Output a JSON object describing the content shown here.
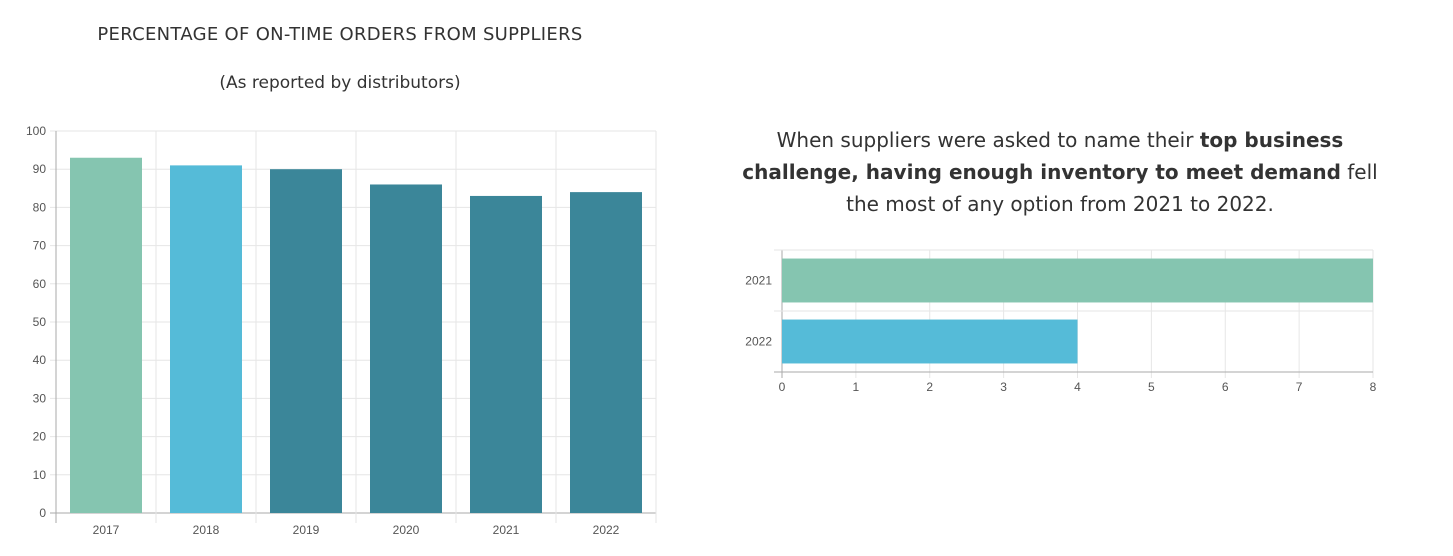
{
  "left_chart": {
    "title": "PERCENTAGE OF ON-TIME ORDERS FROM SUPPLIERS",
    "subtitle": "(As reported by distributors)"
  },
  "note": {
    "before": "When suppliers were asked to name their ",
    "bold": "top business challenge, having enough inventory to meet demand",
    "after": " fell the most of any option from 2021 to 2022."
  },
  "colors": {
    "green": "#85C5B0",
    "light_blue": "#55BBD8",
    "teal": "#3B8699",
    "grid": "#E6E6E6",
    "axis": "#AAAAAA"
  },
  "chart_data": [
    {
      "type": "bar",
      "orientation": "vertical",
      "title": "PERCENTAGE OF ON-TIME ORDERS FROM SUPPLIERS",
      "subtitle": "(As reported by distributors)",
      "categories": [
        "2017",
        "2018",
        "2019",
        "2020",
        "2021",
        "2022"
      ],
      "values": [
        93,
        91,
        90,
        86,
        83,
        84
      ],
      "bar_colors": [
        "#85C5B0",
        "#55BBD8",
        "#3B8699",
        "#3B8699",
        "#3B8699",
        "#3B8699"
      ],
      "ylim": [
        0,
        100
      ],
      "yticks": [
        0,
        10,
        20,
        30,
        40,
        50,
        60,
        70,
        80,
        90,
        100
      ],
      "grid": true,
      "xlabel": "",
      "ylabel": ""
    },
    {
      "type": "bar",
      "orientation": "horizontal",
      "categories": [
        "2021",
        "2022"
      ],
      "values": [
        8,
        4
      ],
      "bar_colors": [
        "#85C5B0",
        "#55BBD8"
      ],
      "xlim": [
        0,
        8
      ],
      "xticks": [
        0,
        1,
        2,
        3,
        4,
        5,
        6,
        7,
        8
      ],
      "grid": true,
      "xlabel": "",
      "ylabel": ""
    }
  ]
}
